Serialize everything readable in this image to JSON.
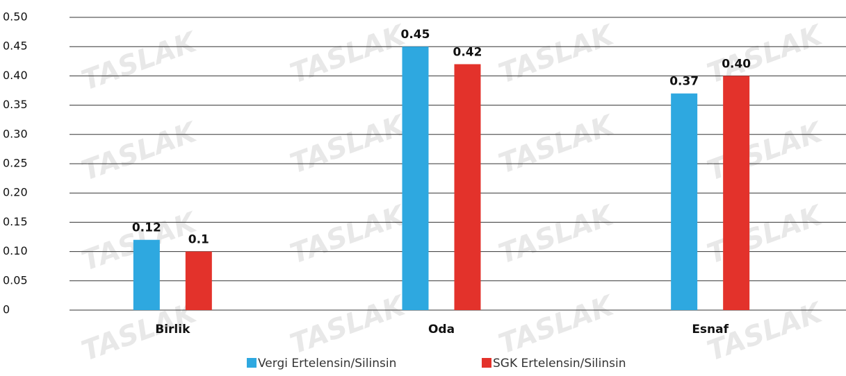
{
  "chart_data": {
    "type": "bar",
    "watermark": "TASLAK",
    "categories": [
      "Birlik",
      "Oda",
      "Esnaf"
    ],
    "series": [
      {
        "name": "Vergi Ertelensin/Silinsin",
        "color": "#2ea8e0",
        "values": [
          0.12,
          0.45,
          0.37
        ],
        "value_labels": [
          "0.12",
          "0.45",
          "0.37"
        ]
      },
      {
        "name": "SGK Ertelensin/Silinsin",
        "color": "#e3322b",
        "values": [
          0.1,
          0.42,
          0.4
        ],
        "value_labels": [
          "0.1",
          "0.42",
          "0.40"
        ]
      }
    ],
    "ylim": [
      0,
      0.5
    ],
    "yticks": [
      0,
      {
        "value": 0.05,
        "label": "0.05"
      },
      {
        "value": 0.1,
        "label": "0.10"
      },
      0.15,
      {
        "value": 0.2,
        "label": "0.20"
      },
      0.25,
      {
        "value": 0.3,
        "label": "0.30"
      },
      0.35,
      {
        "value": 0.4,
        "label": "0.40"
      },
      0.45,
      {
        "value": 0.5,
        "label": "0.50"
      }
    ],
    "grid": true
  }
}
